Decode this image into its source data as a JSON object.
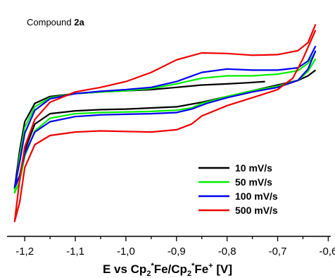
{
  "chart_data": {
    "type": "line",
    "title": {
      "prefix": "Compound ",
      "bold": "2a"
    },
    "xlabel": {
      "p1": "E vs Cp",
      "sub1": "2",
      "sup1": "*",
      "p2": "Fe/Cp",
      "sub2": "2",
      "sup2": "*",
      "p3": "Fe",
      "sup3": "+",
      "p4": " [V]"
    },
    "ylabel": "",
    "xlim": [
      -1.235,
      -0.595
    ],
    "ylim": [
      -1.0,
      1.0
    ],
    "x_inverted": false,
    "grid": false,
    "legend_position": "right-middle",
    "xticks": [
      {
        "value": -1.2,
        "label": "-1,2"
      },
      {
        "value": -1.1,
        "label": "-1,1"
      },
      {
        "value": -1.0,
        "label": "-1,0"
      },
      {
        "value": -0.9,
        "label": "-0,9"
      },
      {
        "value": -0.8,
        "label": "-0,8"
      },
      {
        "value": -0.7,
        "label": "-0,7"
      },
      {
        "value": -0.6,
        "label": "-0,6"
      }
    ],
    "series": [
      {
        "name": "10 mV/s",
        "color": "#000000",
        "points": [
          [
            -0.725,
            0.35
          ],
          [
            -0.76,
            0.34
          ],
          [
            -0.8,
            0.33
          ],
          [
            -0.85,
            0.32
          ],
          [
            -0.9,
            0.3
          ],
          [
            -0.95,
            0.28
          ],
          [
            -1.0,
            0.27
          ],
          [
            -1.05,
            0.26
          ],
          [
            -1.1,
            0.245
          ],
          [
            -1.15,
            0.22
          ],
          [
            -1.18,
            0.16
          ],
          [
            -1.2,
            0.0
          ],
          [
            -1.21,
            -0.25
          ],
          [
            -1.22,
            -0.58
          ],
          [
            -1.21,
            -0.47
          ],
          [
            -1.2,
            -0.25
          ],
          [
            -1.18,
            -0.02
          ],
          [
            -1.15,
            0.07
          ],
          [
            -1.1,
            0.095
          ],
          [
            -1.05,
            0.105
          ],
          [
            -1.0,
            0.11
          ],
          [
            -0.95,
            0.12
          ],
          [
            -0.9,
            0.13
          ],
          [
            -0.85,
            0.17
          ],
          [
            -0.8,
            0.22
          ],
          [
            -0.75,
            0.27
          ],
          [
            -0.7,
            0.32
          ],
          [
            -0.66,
            0.36
          ],
          [
            -0.64,
            0.4
          ],
          [
            -0.625,
            0.45
          ]
        ]
      },
      {
        "name": "50 mV/s",
        "color": "#00ee00",
        "points": [
          [
            -0.625,
            0.61
          ],
          [
            -0.64,
            0.51
          ],
          [
            -0.66,
            0.445
          ],
          [
            -0.7,
            0.415
          ],
          [
            -0.75,
            0.4
          ],
          [
            -0.8,
            0.4
          ],
          [
            -0.85,
            0.38
          ],
          [
            -0.9,
            0.33
          ],
          [
            -0.95,
            0.29
          ],
          [
            -1.0,
            0.27
          ],
          [
            -1.05,
            0.26
          ],
          [
            -1.1,
            0.245
          ],
          [
            -1.15,
            0.21
          ],
          [
            -1.18,
            0.13
          ],
          [
            -1.2,
            -0.05
          ],
          [
            -1.21,
            -0.3
          ],
          [
            -1.22,
            -0.62
          ],
          [
            -1.21,
            -0.52
          ],
          [
            -1.2,
            -0.3
          ],
          [
            -1.18,
            -0.08
          ],
          [
            -1.15,
            0.03
          ],
          [
            -1.1,
            0.07
          ],
          [
            -1.05,
            0.08
          ],
          [
            -1.0,
            0.085
          ],
          [
            -0.95,
            0.09
          ],
          [
            -0.9,
            0.1
          ],
          [
            -0.87,
            0.12
          ],
          [
            -0.85,
            0.16
          ],
          [
            -0.8,
            0.22
          ],
          [
            -0.75,
            0.27
          ],
          [
            -0.7,
            0.31
          ],
          [
            -0.66,
            0.36
          ],
          [
            -0.64,
            0.44
          ],
          [
            -0.625,
            0.55
          ]
        ]
      },
      {
        "name": "100 mV/s",
        "color": "#0000ee",
        "points": [
          [
            -0.625,
            0.66
          ],
          [
            -0.64,
            0.53
          ],
          [
            -0.66,
            0.47
          ],
          [
            -0.7,
            0.45
          ],
          [
            -0.75,
            0.45
          ],
          [
            -0.8,
            0.46
          ],
          [
            -0.85,
            0.43
          ],
          [
            -0.9,
            0.35
          ],
          [
            -0.95,
            0.3
          ],
          [
            -1.0,
            0.28
          ],
          [
            -1.05,
            0.265
          ],
          [
            -1.1,
            0.245
          ],
          [
            -1.15,
            0.2
          ],
          [
            -1.18,
            0.1
          ],
          [
            -1.2,
            -0.1
          ],
          [
            -1.21,
            -0.35
          ],
          [
            -1.22,
            -0.57
          ],
          [
            -1.21,
            -0.47
          ],
          [
            -1.2,
            -0.28
          ],
          [
            -1.18,
            -0.09
          ],
          [
            -1.15,
            0.0
          ],
          [
            -1.1,
            0.045
          ],
          [
            -1.05,
            0.06
          ],
          [
            -1.0,
            0.065
          ],
          [
            -0.95,
            0.07
          ],
          [
            -0.9,
            0.08
          ],
          [
            -0.87,
            0.11
          ],
          [
            -0.84,
            0.16
          ],
          [
            -0.8,
            0.21
          ],
          [
            -0.75,
            0.26
          ],
          [
            -0.7,
            0.3
          ],
          [
            -0.66,
            0.36
          ],
          [
            -0.64,
            0.46
          ],
          [
            -0.625,
            0.62
          ]
        ]
      },
      {
        "name": "500 mV/s",
        "color": "#ee0000",
        "points": [
          [
            -0.625,
            0.85
          ],
          [
            -0.64,
            0.69
          ],
          [
            -0.66,
            0.62
          ],
          [
            -0.7,
            0.585
          ],
          [
            -0.75,
            0.58
          ],
          [
            -0.8,
            0.595
          ],
          [
            -0.85,
            0.6
          ],
          [
            -0.9,
            0.54
          ],
          [
            -0.95,
            0.43
          ],
          [
            -1.0,
            0.35
          ],
          [
            -1.05,
            0.3
          ],
          [
            -1.1,
            0.26
          ],
          [
            -1.15,
            0.17
          ],
          [
            -1.18,
            0.02
          ],
          [
            -1.2,
            -0.22
          ],
          [
            -1.21,
            -0.5
          ],
          [
            -1.22,
            -0.87
          ],
          [
            -1.21,
            -0.7
          ],
          [
            -1.2,
            -0.4
          ],
          [
            -1.18,
            -0.2
          ],
          [
            -1.15,
            -0.12
          ],
          [
            -1.1,
            -0.09
          ],
          [
            -1.05,
            -0.08
          ],
          [
            -1.0,
            -0.085
          ],
          [
            -0.95,
            -0.09
          ],
          [
            -0.9,
            -0.07
          ],
          [
            -0.87,
            -0.02
          ],
          [
            -0.85,
            0.05
          ],
          [
            -0.8,
            0.14
          ],
          [
            -0.75,
            0.21
          ],
          [
            -0.7,
            0.28
          ],
          [
            -0.67,
            0.38
          ],
          [
            -0.65,
            0.55
          ],
          [
            -0.635,
            0.7
          ],
          [
            -0.625,
            0.8
          ]
        ]
      }
    ]
  }
}
